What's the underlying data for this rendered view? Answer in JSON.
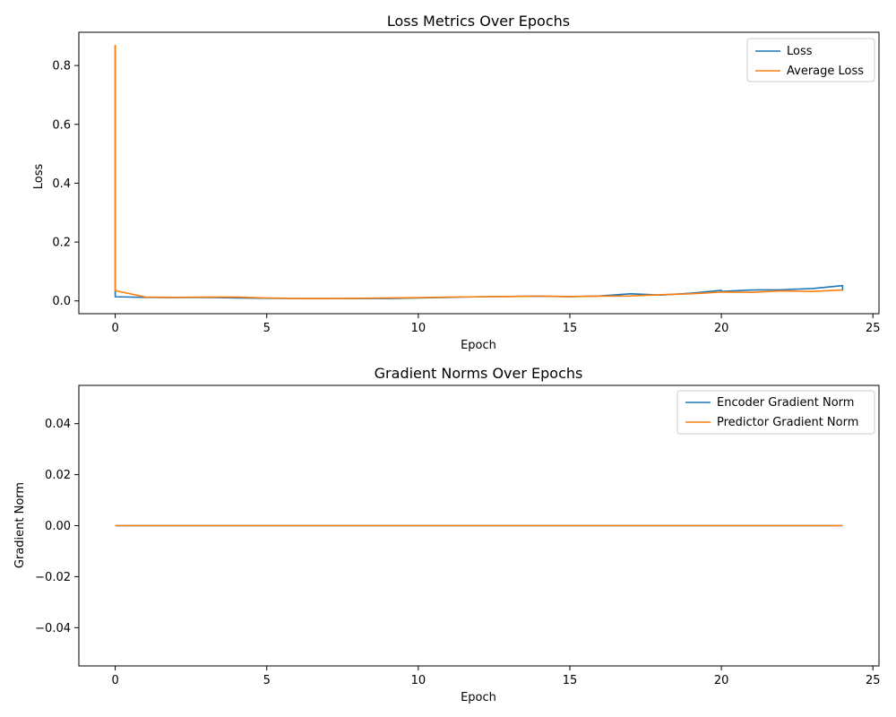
{
  "chart_data": [
    {
      "type": "line",
      "title": "Loss Metrics Over Epochs",
      "xlabel": "Epoch",
      "ylabel": "Loss",
      "xlim": [
        -1.2,
        25.2
      ],
      "ylim": [
        -0.0435,
        0.913
      ],
      "xticks": [
        0,
        5,
        10,
        15,
        20,
        25
      ],
      "yticks": [
        0.0,
        0.2,
        0.4,
        0.6,
        0.8
      ],
      "xtick_labels": [
        "0",
        "5",
        "10",
        "15",
        "20",
        "25"
      ],
      "ytick_labels": [
        "0.0",
        "0.2",
        "0.4",
        "0.6",
        "0.8"
      ],
      "legend_position": "top-right",
      "grid": false,
      "series": [
        {
          "name": "Loss",
          "color": "#1f77b4",
          "x": [
            0,
            0,
            0,
            1,
            2,
            3,
            4,
            5,
            6,
            7,
            8,
            9,
            10,
            11,
            12,
            13,
            14,
            15,
            16,
            17,
            18,
            19,
            20,
            20,
            21,
            22,
            23,
            24,
            24
          ],
          "y": [
            0.87,
            0.035,
            0.014,
            0.012,
            0.011,
            0.012,
            0.01,
            0.009,
            0.008,
            0.008,
            0.008,
            0.008,
            0.01,
            0.012,
            0.014,
            0.015,
            0.016,
            0.014,
            0.017,
            0.024,
            0.02,
            0.026,
            0.036,
            0.032,
            0.037,
            0.038,
            0.042,
            0.052,
            0.035
          ]
        },
        {
          "name": "Average Loss",
          "color": "#ff7f0e",
          "x": [
            0,
            0,
            1,
            2,
            3,
            4,
            5,
            6,
            7,
            8,
            9,
            10,
            11,
            12,
            13,
            14,
            15,
            16,
            17,
            18,
            19,
            20,
            21,
            22,
            23,
            24
          ],
          "y": [
            0.87,
            0.035,
            0.013,
            0.012,
            0.013,
            0.013,
            0.01,
            0.008,
            0.008,
            0.009,
            0.01,
            0.011,
            0.013,
            0.014,
            0.015,
            0.016,
            0.015,
            0.016,
            0.017,
            0.021,
            0.024,
            0.03,
            0.029,
            0.034,
            0.032,
            0.037
          ]
        }
      ]
    },
    {
      "type": "line",
      "title": "Gradient Norms Over Epochs",
      "xlabel": "Epoch",
      "ylabel": "Gradient Norm",
      "xlim": [
        -1.2,
        25.2
      ],
      "ylim": [
        -0.055,
        0.055
      ],
      "xticks": [
        0,
        5,
        10,
        15,
        20,
        25
      ],
      "yticks": [
        -0.04,
        -0.02,
        0.0,
        0.02,
        0.04
      ],
      "xtick_labels": [
        "0",
        "5",
        "10",
        "15",
        "20",
        "25"
      ],
      "ytick_labels": [
        "−0.04",
        "−0.02",
        "0.00",
        "0.02",
        "0.04"
      ],
      "legend_position": "top-right",
      "grid": false,
      "series": [
        {
          "name": "Encoder Gradient Norm",
          "color": "#1f77b4",
          "x": [
            0,
            24
          ],
          "y": [
            0.0,
            0.0
          ]
        },
        {
          "name": "Predictor Gradient Norm",
          "color": "#ff7f0e",
          "x": [
            0,
            24
          ],
          "y": [
            0.0,
            0.0
          ]
        }
      ]
    }
  ]
}
